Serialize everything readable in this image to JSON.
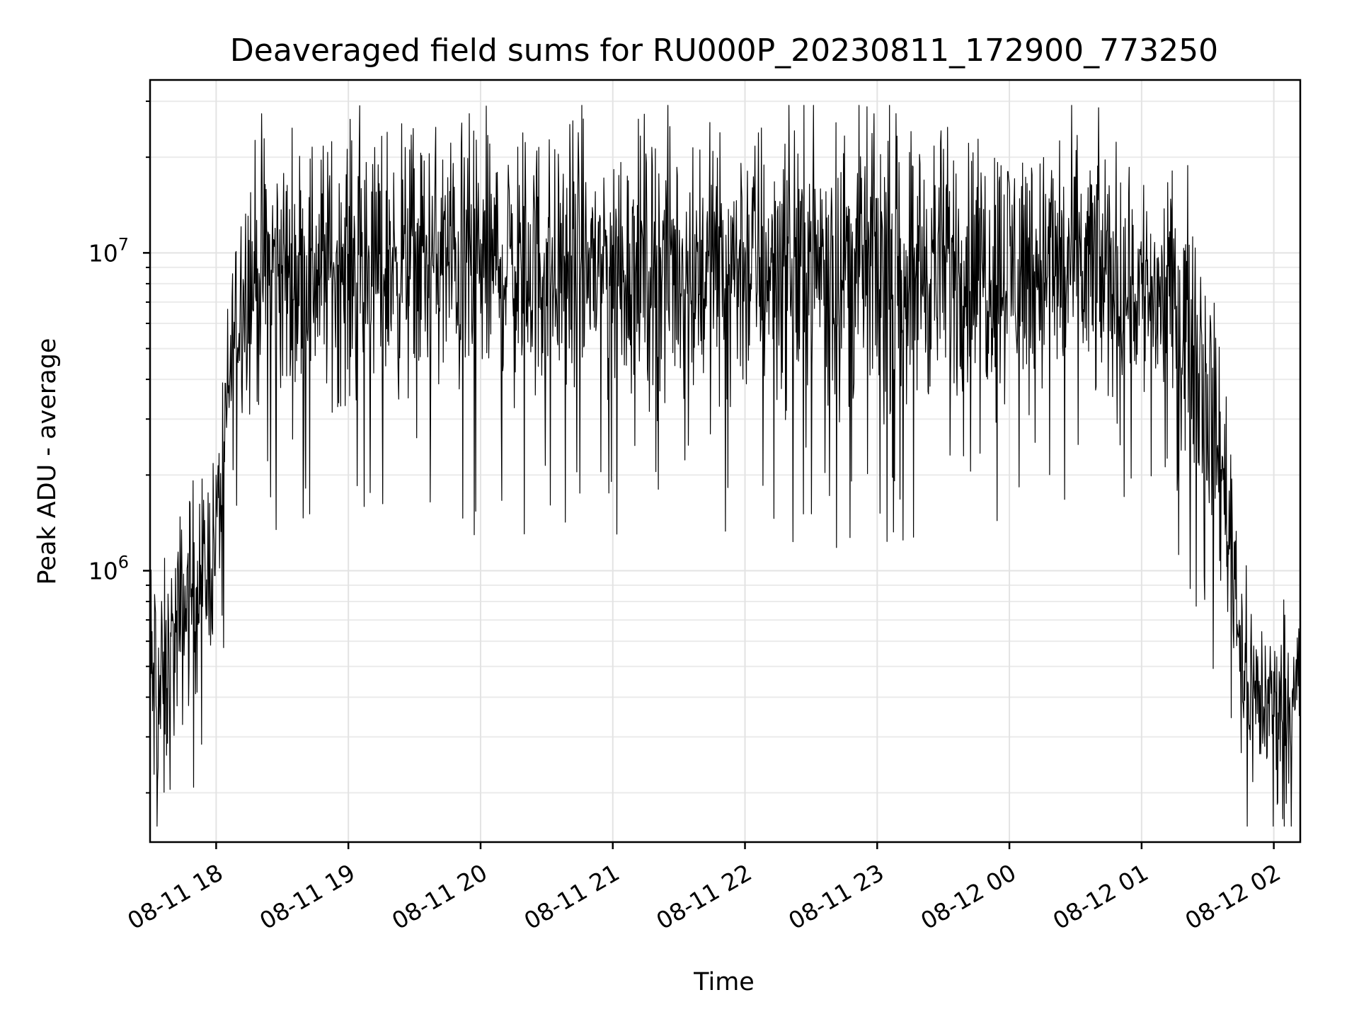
{
  "chart_data": {
    "type": "line",
    "title": "Deaveraged field sums for RU000P_20230811_172900_773250",
    "xlabel": "Time",
    "ylabel": "Peak ADU - average",
    "xlim": [
      "2023-08-11 17:30",
      "2023-08-12 02:12"
    ],
    "ylim": [
      140000,
      35000000
    ],
    "y_scale": "log",
    "grid": true,
    "x_ticks": [
      "08-11 18",
      "08-11 19",
      "08-11 20",
      "08-11 21",
      "08-11 22",
      "08-11 23",
      "08-12 00",
      "08-12 01",
      "08-12 02"
    ],
    "x_tick_values": [
      "2023-08-11 18:00",
      "2023-08-11 19:00",
      "2023-08-11 20:00",
      "2023-08-11 21:00",
      "2023-08-11 22:00",
      "2023-08-11 23:00",
      "2023-08-12 00:00",
      "2023-08-12 01:00",
      "2023-08-12 02:00"
    ],
    "y_ticks": [
      {
        "value": 1000000,
        "base": "10",
        "exp": "6"
      },
      {
        "value": 10000000,
        "base": "10",
        "exp": "7"
      }
    ],
    "series": [
      {
        "color": "#000000",
        "x": [
          "2023-08-11 17:30",
          "2023-08-11 17:33",
          "2023-08-11 17:36",
          "2023-08-11 17:40",
          "2023-08-11 17:44",
          "2023-08-11 17:48",
          "2023-08-11 17:52",
          "2023-08-11 17:56",
          "2023-08-11 18:00",
          "2023-08-11 18:04",
          "2023-08-11 18:08",
          "2023-08-11 18:12",
          "2023-08-11 18:18",
          "2023-08-11 18:25",
          "2023-08-11 18:35",
          "2023-08-11 18:45",
          "2023-08-11 19:00",
          "2023-08-11 19:30",
          "2023-08-11 20:00",
          "2023-08-11 20:30",
          "2023-08-11 21:00",
          "2023-08-11 21:30",
          "2023-08-11 22:00",
          "2023-08-11 22:30",
          "2023-08-11 23:00",
          "2023-08-11 23:30",
          "2023-08-12 00:00",
          "2023-08-12 00:30",
          "2023-08-12 00:45",
          "2023-08-12 00:55",
          "2023-08-12 01:05",
          "2023-08-12 01:15",
          "2023-08-12 01:22",
          "2023-08-12 01:28",
          "2023-08-12 01:34",
          "2023-08-12 01:40",
          "2023-08-12 01:46",
          "2023-08-12 01:52",
          "2023-08-12 01:58",
          "2023-08-12 02:04",
          "2023-08-12 02:12"
        ],
        "y": [
          450000,
          420000,
          380000,
          550000,
          700000,
          850000,
          950000,
          1000000,
          1300000,
          2600000,
          5500000,
          8000000,
          8500000,
          9000000,
          8500000,
          9000000,
          9000000,
          9500000,
          9200000,
          9000000,
          9300000,
          9000000,
          9300000,
          9500000,
          9200000,
          9000000,
          9200000,
          9000000,
          8500000,
          8000000,
          7500000,
          7000000,
          6000000,
          4500000,
          2500000,
          1500000,
          500000,
          400000,
          380000,
          400000,
          450000
        ],
        "noise_decades": [
          0.7,
          0.6,
          0.6,
          0.5,
          0.5,
          0.5,
          0.45,
          0.45,
          0.4,
          0.45,
          0.5,
          0.55,
          0.6,
          0.6,
          0.6,
          0.6,
          0.6,
          0.6,
          0.62,
          0.62,
          0.62,
          0.62,
          0.64,
          0.66,
          0.64,
          0.62,
          0.62,
          0.6,
          0.6,
          0.55,
          0.55,
          0.55,
          0.6,
          0.6,
          0.55,
          0.5,
          0.45,
          0.4,
          0.4,
          0.4,
          0.4
        ]
      }
    ]
  }
}
